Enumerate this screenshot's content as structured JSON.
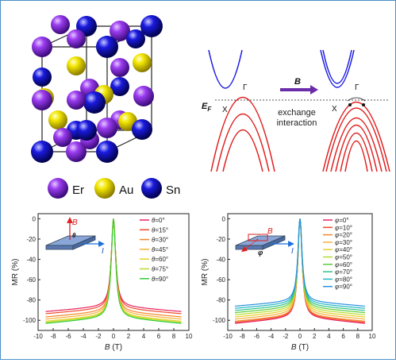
{
  "legend_atoms": [
    {
      "label": "Er",
      "color": "#8a2be2"
    },
    {
      "label": "Au",
      "color": "#f2e600"
    },
    {
      "label": "Sn",
      "color": "#1010c8"
    }
  ],
  "band": {
    "ef_label": "E",
    "ef_sub": "F",
    "x_label": "X",
    "gamma_label": "Γ",
    "field_label": "B",
    "exchange_line1": "exchange",
    "exchange_line2": "interaction"
  },
  "chart_data": [
    {
      "type": "line",
      "xlabel_italic": "B",
      "xlabel_unit": " (T)",
      "ylabel": "MR (%)",
      "xlim": [
        -10,
        10
      ],
      "ylim": [
        -110,
        5
      ],
      "xticks": [
        -10,
        -8,
        -6,
        -4,
        -2,
        0,
        2,
        4,
        6,
        8,
        10
      ],
      "yticks": [
        0,
        -20,
        -40,
        -60,
        -80,
        -100
      ],
      "angle_symbol": "θ",
      "series": [
        {
          "name": "=0°",
          "color": "#e8235f",
          "value_at_9T": -86
        },
        {
          "name": "=15°",
          "color": "#f04a2e",
          "value_at_9T": -88
        },
        {
          "name": "=30°",
          "color": "#f5862b",
          "value_at_9T": -91
        },
        {
          "name": "=45°",
          "color": "#f4b33a",
          "value_at_9T": -93
        },
        {
          "name": "=60°",
          "color": "#e6d02a",
          "value_at_9T": -95
        },
        {
          "name": "=75°",
          "color": "#b6dd2e",
          "value_at_9T": -96
        },
        {
          "name": "=90°",
          "color": "#33cc33",
          "value_at_9T": -97
        }
      ],
      "inset": {
        "field": "B",
        "angle": "θ",
        "current": "I"
      }
    },
    {
      "type": "line",
      "xlabel_italic": "B",
      "xlabel_unit": " (T)",
      "ylabel": "MR (%)",
      "xlim": [
        -10,
        10
      ],
      "ylim": [
        -110,
        5
      ],
      "xticks": [
        -10,
        -8,
        -6,
        -4,
        -2,
        0,
        2,
        4,
        6,
        8,
        10
      ],
      "yticks": [
        0,
        -20,
        -40,
        -60,
        -80,
        -100
      ],
      "angle_symbol": "φ",
      "series": [
        {
          "name": "=0°",
          "color": "#e8235f",
          "value_at_9T": -97
        },
        {
          "name": "=10°",
          "color": "#f04a2e",
          "value_at_9T": -96
        },
        {
          "name": "=20°",
          "color": "#f5862b",
          "value_at_9T": -95
        },
        {
          "name": "=30°",
          "color": "#f4b33a",
          "value_at_9T": -93
        },
        {
          "name": "=40°",
          "color": "#e6d02a",
          "value_at_9T": -91
        },
        {
          "name": "=50°",
          "color": "#b6dd2e",
          "value_at_9T": -89
        },
        {
          "name": "=60°",
          "color": "#5ccc3a",
          "value_at_9T": -87
        },
        {
          "name": "=70°",
          "color": "#2fc28a",
          "value_at_9T": -85
        },
        {
          "name": "=80°",
          "color": "#22b7c2",
          "value_at_9T": -83
        },
        {
          "name": "=90°",
          "color": "#2a92e0",
          "value_at_9T": -81
        }
      ],
      "inset": {
        "field": "B",
        "angle": "φ",
        "current": "I"
      }
    }
  ]
}
